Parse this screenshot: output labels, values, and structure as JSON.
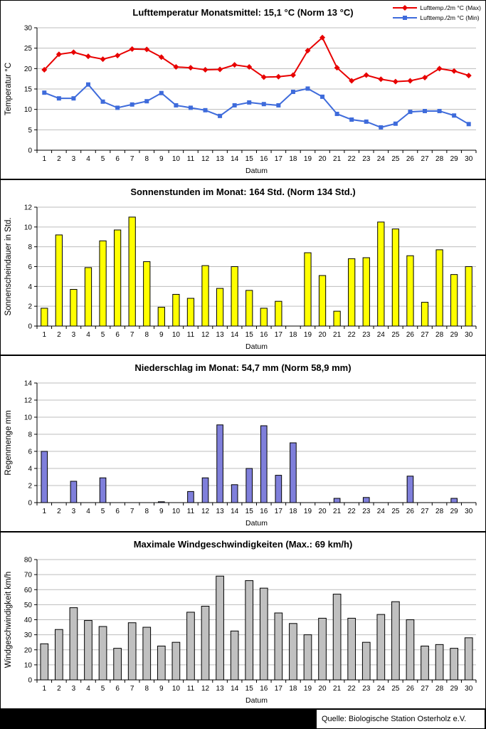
{
  "footer": {
    "source_label": "Quelle: Biologische Station Osterholz e.V."
  },
  "chart_data": [
    {
      "type": "line",
      "title": "Lufttemperatur Monatsmittel: 15,1 °C (Norm 13 °C)",
      "xlabel": "Datum",
      "ylabel": "Temperatur °C",
      "ylim": [
        0,
        30
      ],
      "ytick_step": 5,
      "grid": true,
      "legend_position": "top-right",
      "categories": [
        1,
        2,
        3,
        4,
        5,
        6,
        7,
        8,
        9,
        10,
        11,
        12,
        13,
        14,
        15,
        16,
        17,
        18,
        19,
        20,
        21,
        22,
        23,
        24,
        25,
        26,
        27,
        28,
        29,
        30
      ],
      "series": [
        {
          "name": "Lufttemp./2m °C (Max)",
          "color": "#e80000",
          "marker": "diamond",
          "values": [
            19.7,
            23.5,
            24.0,
            23.0,
            22.3,
            23.2,
            24.8,
            24.7,
            22.8,
            20.4,
            20.2,
            19.7,
            19.8,
            20.9,
            20.4,
            17.9,
            18.0,
            18.4,
            24.4,
            27.6,
            20.2,
            17.0,
            18.4,
            17.4,
            16.8,
            17.0,
            17.8,
            20.0,
            19.4,
            18.3
          ]
        },
        {
          "name": "Lufttemp./2m °C (Min)",
          "color": "#3e6bdb",
          "marker": "square",
          "values": [
            14.1,
            12.7,
            12.7,
            16.1,
            11.9,
            10.4,
            11.2,
            12.0,
            14.0,
            11.0,
            10.4,
            9.8,
            8.4,
            11.0,
            11.7,
            11.3,
            11.0,
            14.3,
            15.1,
            13.1,
            8.9,
            7.5,
            7.0,
            5.6,
            6.5,
            9.4,
            9.6,
            9.6,
            8.5,
            6.4
          ]
        }
      ]
    },
    {
      "type": "bar",
      "title": "Sonnenstunden im Monat: 164 Std. (Norm 134 Std.)",
      "xlabel": "Datum",
      "ylabel": "Sonnenscheindauer in Std.",
      "ylim": [
        0,
        12
      ],
      "ytick_step": 2,
      "grid": true,
      "bar_color": "#ffff00",
      "bar_frac": 0.45,
      "categories": [
        1,
        2,
        3,
        4,
        5,
        6,
        7,
        8,
        9,
        10,
        11,
        12,
        13,
        14,
        15,
        16,
        17,
        18,
        19,
        20,
        21,
        22,
        23,
        24,
        25,
        26,
        27,
        28,
        29,
        30
      ],
      "values": [
        1.8,
        9.2,
        3.7,
        5.9,
        8.6,
        9.7,
        11.0,
        6.5,
        1.9,
        3.2,
        2.8,
        6.1,
        3.8,
        6.0,
        3.6,
        1.8,
        2.5,
        0,
        7.4,
        5.1,
        1.5,
        6.8,
        6.9,
        10.5,
        9.8,
        7.1,
        2.4,
        7.7,
        5.2,
        6.0
      ]
    },
    {
      "type": "bar",
      "title": "Niederschlag im Monat: 54,7 mm (Norm 58,9 mm)",
      "xlabel": "Datum",
      "ylabel": "Regenmenge mm",
      "ylim": [
        0,
        14
      ],
      "ytick_step": 2,
      "grid": true,
      "bar_color": "#7f7fdb",
      "bar_frac": 0.42,
      "categories": [
        1,
        2,
        3,
        4,
        5,
        6,
        7,
        8,
        9,
        10,
        11,
        12,
        13,
        14,
        15,
        16,
        17,
        18,
        19,
        20,
        21,
        22,
        23,
        24,
        25,
        26,
        27,
        28,
        29,
        30
      ],
      "values": [
        6.0,
        0,
        2.5,
        0,
        2.9,
        0,
        0,
        0,
        0.1,
        0,
        1.3,
        2.9,
        9.1,
        2.1,
        4.0,
        9.0,
        3.2,
        7.0,
        0,
        0,
        0.5,
        0,
        0.6,
        0,
        0,
        3.1,
        0,
        0,
        0.5,
        0
      ]
    },
    {
      "type": "bar",
      "title": "Maximale Windgeschwindigkeiten (Max.: 69 km/h)",
      "xlabel": "Datum",
      "ylabel": "Windgeschwindigkeit km/h",
      "ylim": [
        0,
        80
      ],
      "ytick_step": 10,
      "grid": true,
      "bar_color": "#c0c0c0",
      "bar_frac": 0.52,
      "categories": [
        1,
        2,
        3,
        4,
        5,
        6,
        7,
        8,
        9,
        10,
        11,
        12,
        13,
        14,
        15,
        16,
        17,
        18,
        19,
        20,
        21,
        22,
        23,
        24,
        25,
        26,
        27,
        28,
        29,
        30
      ],
      "values": [
        24,
        33.5,
        48,
        39.5,
        35.5,
        21,
        38,
        35,
        22.5,
        25,
        45,
        49,
        69,
        32.5,
        66,
        61,
        44.5,
        37.5,
        30,
        41,
        57,
        41,
        25,
        43.5,
        52,
        40,
        22.5,
        23.5,
        21,
        28
      ]
    }
  ]
}
